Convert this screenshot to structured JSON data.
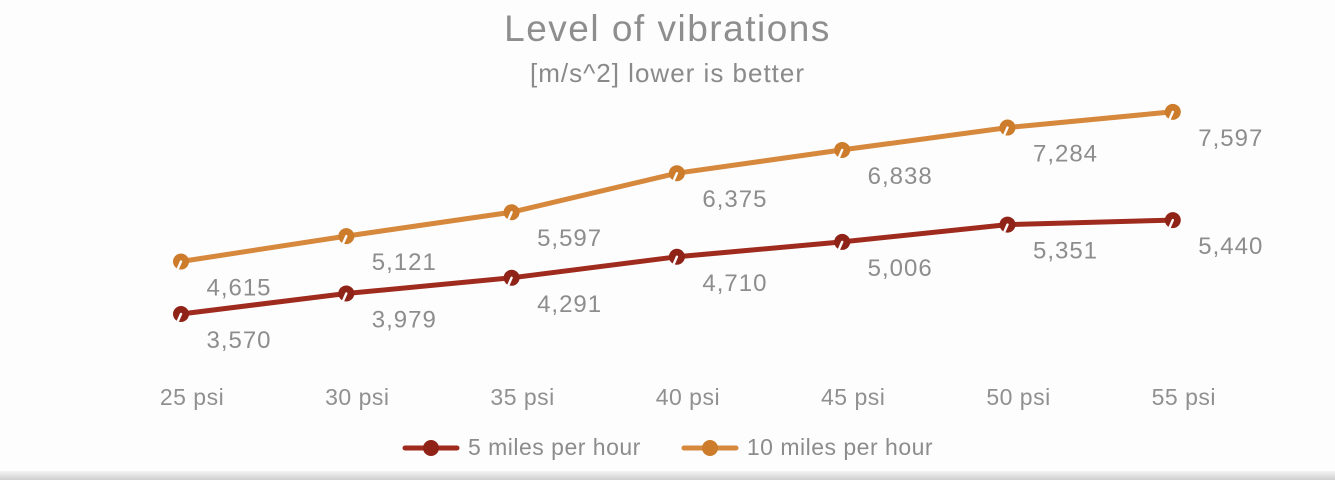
{
  "title": "Level of vibrations",
  "subtitle": "[m/s^2] lower is better",
  "colors": {
    "series_5mph_line": "#9F2B1F",
    "series_5mph_marker": "#8F2318",
    "series_10mph_line": "#D6883D",
    "series_10mph_marker": "#CC7C2B",
    "label_text": "#8d8d8d",
    "axis_text": "#909090",
    "title_text": "#8e8e8e",
    "background": "#fdfdfd"
  },
  "chart_data": {
    "type": "line",
    "title": "Level of vibrations",
    "subtitle": "[m/s^2] lower is better",
    "categories": [
      "25 psi",
      "30 psi",
      "35 psi",
      "40 psi",
      "45 psi",
      "50 psi",
      "55 psi"
    ],
    "series": [
      {
        "name": "5 miles per hour",
        "line_color": "#9F2B1F",
        "marker_color": "#8F2318",
        "values": [
          3570,
          3979,
          4291,
          4710,
          5006,
          5351,
          5440
        ],
        "value_labels": [
          "3,570",
          "3,979",
          "4,291",
          "4,710",
          "5,006",
          "5,351",
          "5,440"
        ]
      },
      {
        "name": "10 miles per hour",
        "line_color": "#D6883D",
        "marker_color": "#CC7C2B",
        "values": [
          4615,
          5121,
          5597,
          6375,
          6838,
          7284,
          7597
        ],
        "value_labels": [
          "4,615",
          "5,121",
          "5,597",
          "6,375",
          "6,838",
          "7,284",
          "7,597"
        ]
      }
    ],
    "xlabel": "",
    "ylabel": "",
    "ylim": [
      3300,
      8100
    ],
    "grid": false,
    "axes_drawn": false,
    "data_labels": true,
    "marker": "circle-with-white-notch",
    "legend_position": "bottom"
  },
  "legend": {
    "items": [
      {
        "label": "5 miles per hour"
      },
      {
        "label": "10 miles per hour"
      }
    ]
  }
}
